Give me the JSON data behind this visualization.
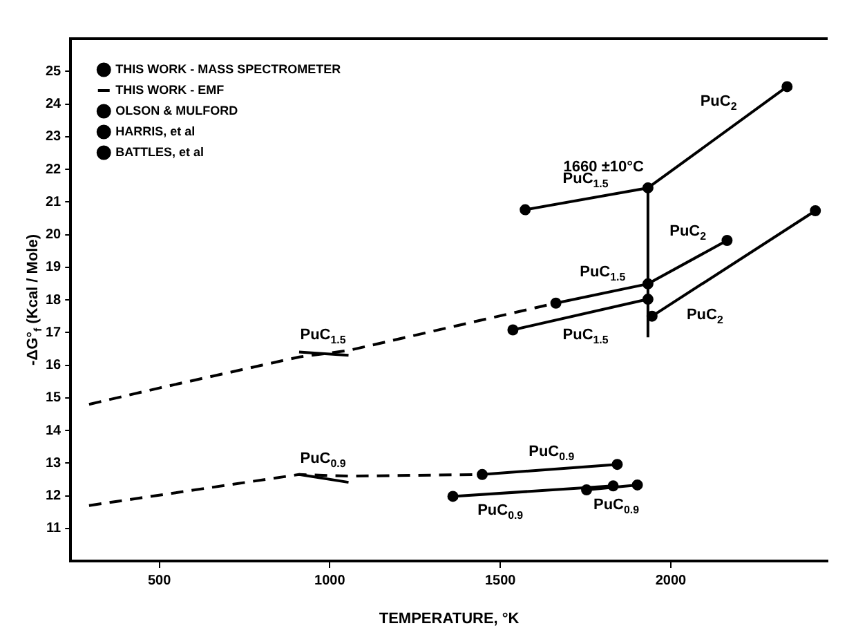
{
  "chart_data": {
    "type": "line",
    "xlabel": "TEMPERATURE, °K",
    "ylabel": "-ΔG°$_{f}$ (Kcal / Mole)",
    "xlim": [
      240,
      2460
    ],
    "ylim": [
      10,
      26
    ],
    "xticks": [
      500,
      1000,
      1500,
      2000
    ],
    "yticks": [
      11,
      12,
      13,
      14,
      15,
      16,
      17,
      18,
      19,
      20,
      21,
      22,
      23,
      24,
      25
    ],
    "grid": false,
    "legend": "top left",
    "marker": "circle",
    "series": [
      {
        "name": "THIS WORK - MASS SPECTROMETER",
        "color": "#000000",
        "x": [
          1447,
          1843
        ],
        "values": [
          12.65,
          12.96
        ]
      },
      {
        "color": "#000000",
        "x": [
          1663,
          1933,
          2165
        ],
        "values": [
          17.9,
          18.49,
          19.82
        ]
      },
      {
        "name": "THIS WORK - EMF",
        "color": "#000000",
        "marker": "none",
        "x": [
          910,
          1055
        ],
        "values": [
          16.4,
          16.3
        ]
      },
      {
        "color": "#000000",
        "marker": "none",
        "x": [
          910,
          1055
        ],
        "values": [
          12.65,
          12.41
        ]
      },
      {
        "name": "OLSON & MULFORD",
        "color": "#000000",
        "x": [
          1573,
          1933,
          2341
        ],
        "values": [
          20.76,
          21.43,
          24.53
        ]
      },
      {
        "name": "HARRIS, et al",
        "color": "#000000",
        "x": [
          1537,
          1933
        ],
        "values": [
          17.08,
          18.02
        ]
      },
      {
        "color": "#000000",
        "x": [
          1945,
          2424
        ],
        "values": [
          17.5,
          20.73
        ]
      },
      {
        "name": "BATTLES, et al",
        "color": "#000000",
        "x": [
          1361,
          1831
        ],
        "values": [
          11.98,
          12.3
        ]
      },
      {
        "color": "#000000",
        "x": [
          1753,
          1902
        ],
        "values": [
          12.18,
          12.33
        ]
      },
      {
        "color": "#000000",
        "line_style": "dashed",
        "marker": "none",
        "x": [
          294,
          500,
          910,
          1055,
          1663
        ],
        "values": [
          14.8,
          15.3,
          16.25,
          16.45,
          17.9
        ]
      },
      {
        "color": "#000000",
        "line_style": "dashed",
        "marker": "none",
        "x": [
          294,
          910,
          1055,
          1447
        ],
        "values": [
          11.7,
          12.65,
          12.6,
          12.65
        ]
      },
      {
        "color": "#000000",
        "marker": "none",
        "x": [
          1933,
          1933
        ],
        "values": [
          16.85,
          21.6
        ]
      }
    ],
    "annotations": [
      {
        "text": "1660 ±10°C",
        "x": 1933,
        "y": 21.6
      },
      {
        "text": "PuC$_{1.5}$",
        "x": 1750,
        "y": 21.09
      },
      {
        "text": "PuC$_{2}$",
        "x": 2140,
        "y": 23.0
      },
      {
        "text": "PuC$_{1.5}$",
        "x": 1800,
        "y": 18.2
      },
      {
        "text": "PuC$_{2}$",
        "x": 2050,
        "y": 19.16
      },
      {
        "text": "PuC$_{1.5}$",
        "x": 1750,
        "y": 17.59
      },
      {
        "text": "PuC$_{2}$",
        "x": 2100,
        "y": 18.55
      },
      {
        "text": "PuC$_{1.5}$",
        "x": 980,
        "y": 16.35
      },
      {
        "text": "PuC$_{0.9}$",
        "x": 980,
        "y": 12.53
      },
      {
        "text": "PuC$_{0.9}$",
        "x": 1650,
        "y": 12.81
      },
      {
        "text": "PuC$_{0.9}$",
        "x": 1500,
        "y": 12.07
      },
      {
        "text": "PuC$_{0.9}$",
        "x": 1840,
        "y": 12.27
      }
    ]
  }
}
